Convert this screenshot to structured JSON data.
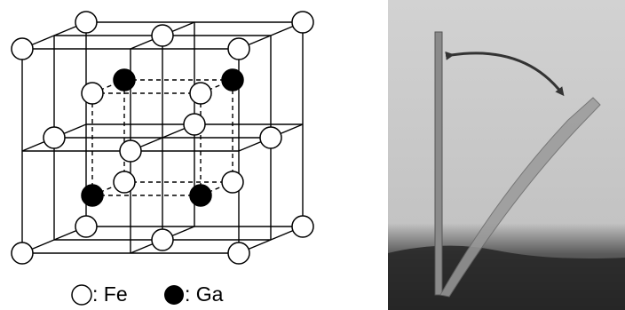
{
  "legend": [
    {
      "label": ": Fe"
    },
    {
      "label": ": Ga"
    }
  ]
}
